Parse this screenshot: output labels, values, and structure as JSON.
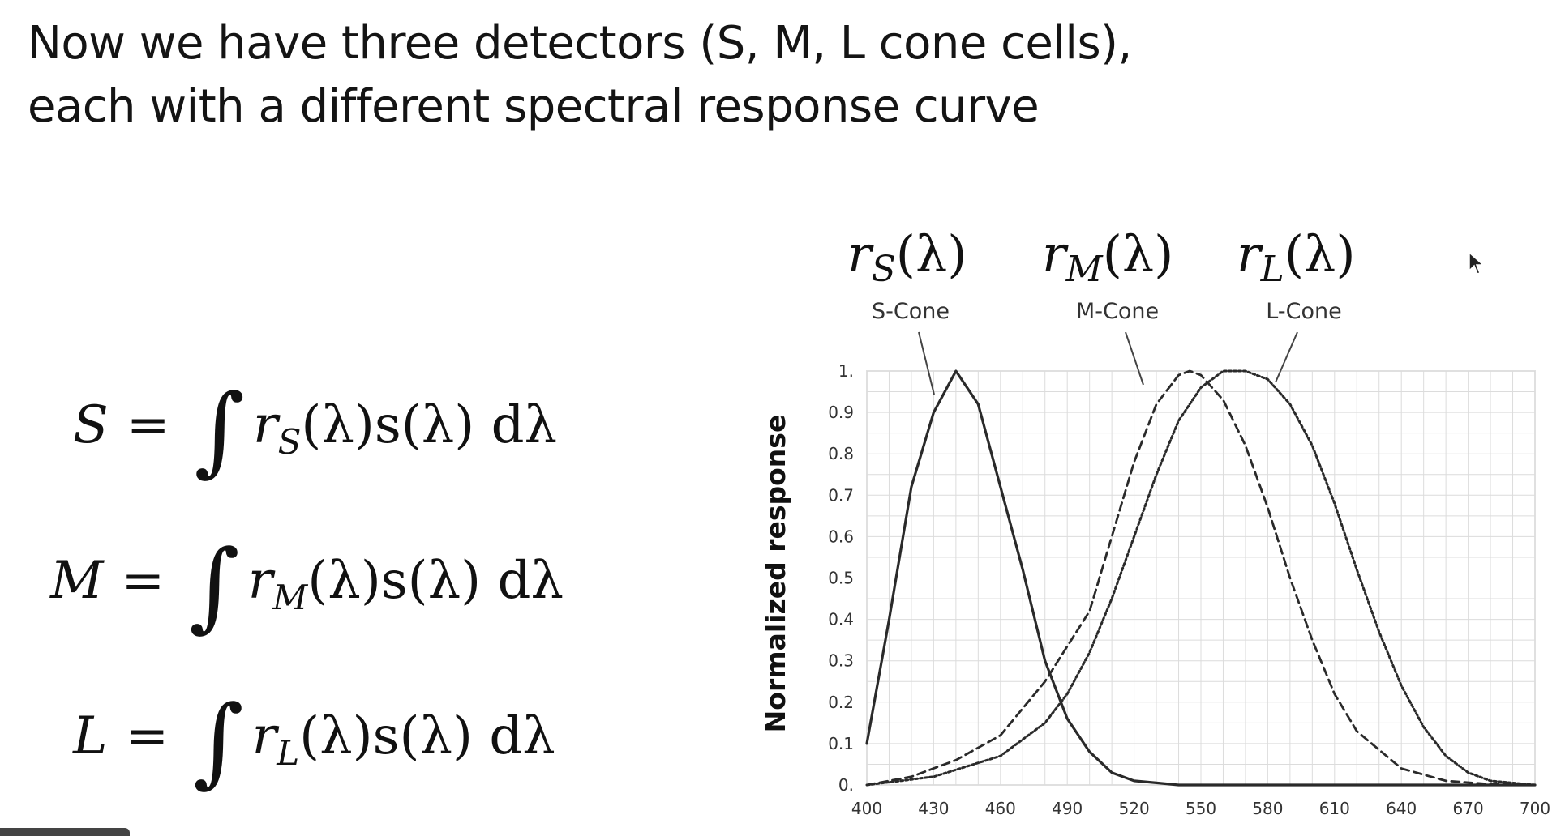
{
  "slide": {
    "title_line1": "Now we have three detectors (S, M, L cone cells),",
    "title_line2": "each with a different spectral response curve"
  },
  "equations": [
    {
      "lhs": "S",
      "sub": "S",
      "rest": "(λ)s(λ) dλ"
    },
    {
      "lhs": "M",
      "sub": "M",
      "rest": "(λ)s(λ) dλ"
    },
    {
      "lhs": "L",
      "sub": "L",
      "rest": "(λ)s(λ) dλ"
    }
  ],
  "chart_data": {
    "type": "line",
    "function_labels": [
      {
        "base": "r",
        "sub": "S",
        "arg": "(λ)"
      },
      {
        "base": "r",
        "sub": "M",
        "arg": "(λ)"
      },
      {
        "base": "r",
        "sub": "L",
        "arg": "(λ)"
      }
    ],
    "ylabel": "Normalized response",
    "xlim": [
      400,
      700
    ],
    "ylim": [
      0,
      1
    ],
    "xticks": [
      "400",
      "430",
      "460",
      "490",
      "520",
      "550",
      "580",
      "610",
      "640",
      "670",
      "700"
    ],
    "yticks": [
      "0.",
      "0.1",
      "0.2",
      "0.3",
      "0.4",
      "0.5",
      "0.6",
      "0.7",
      "0.8",
      "0.9",
      "1."
    ],
    "grid": true,
    "series": [
      {
        "name": "S-Cone",
        "style": "solid",
        "x": [
          400,
          410,
          420,
          430,
          440,
          450,
          460,
          470,
          480,
          490,
          500,
          510,
          520,
          530,
          540,
          550,
          560,
          700
        ],
        "y": [
          0.1,
          0.4,
          0.72,
          0.9,
          1.0,
          0.92,
          0.72,
          0.52,
          0.3,
          0.16,
          0.08,
          0.03,
          0.01,
          0.005,
          0.0,
          0.0,
          0.0,
          0.0
        ]
      },
      {
        "name": "M-Cone",
        "style": "dashed",
        "x": [
          400,
          420,
          440,
          460,
          480,
          500,
          510,
          520,
          530,
          540,
          545,
          550,
          560,
          570,
          580,
          590,
          600,
          610,
          620,
          640,
          660,
          680,
          700
        ],
        "y": [
          0.0,
          0.02,
          0.06,
          0.12,
          0.25,
          0.42,
          0.6,
          0.78,
          0.92,
          0.99,
          1.0,
          0.99,
          0.93,
          0.82,
          0.67,
          0.5,
          0.35,
          0.22,
          0.13,
          0.04,
          0.01,
          0.002,
          0.0
        ]
      },
      {
        "name": "L-Cone",
        "style": "dotted",
        "x": [
          400,
          430,
          460,
          480,
          490,
          500,
          510,
          520,
          530,
          540,
          550,
          560,
          570,
          580,
          590,
          600,
          610,
          620,
          630,
          640,
          650,
          660,
          670,
          680,
          700
        ],
        "y": [
          0.0,
          0.02,
          0.07,
          0.15,
          0.22,
          0.32,
          0.45,
          0.6,
          0.75,
          0.88,
          0.96,
          1.0,
          1.0,
          0.98,
          0.92,
          0.82,
          0.68,
          0.52,
          0.37,
          0.24,
          0.14,
          0.07,
          0.03,
          0.01,
          0.0
        ]
      }
    ]
  }
}
